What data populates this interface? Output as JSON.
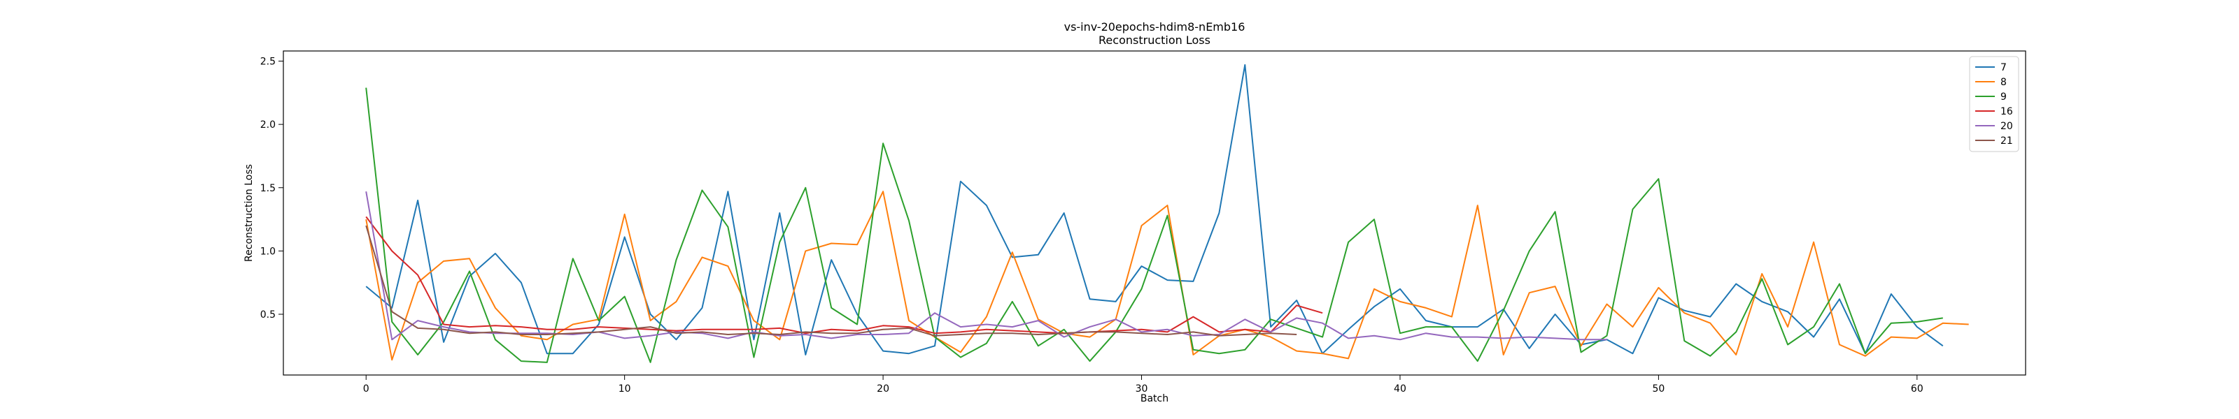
{
  "chart_data": {
    "type": "line",
    "title": "vs-inv-20epochs-hdim8-nEmb16",
    "subtitle": "Reconstruction Loss",
    "xlabel": "Batch",
    "ylabel": "Reconstruction Loss",
    "xlim": [
      -3.2,
      64.2
    ],
    "ylim": [
      0.02,
      2.58
    ],
    "xticks": [
      0,
      10,
      20,
      30,
      40,
      50,
      60
    ],
    "yticks": [
      0.5,
      1.0,
      1.5,
      2.0,
      2.5
    ],
    "grid": false,
    "legend_position": "top-right",
    "series": [
      {
        "name": "7",
        "color": "#1f77b4",
        "values": [
          0.72,
          0.55,
          1.4,
          0.28,
          0.8,
          0.98,
          0.75,
          0.19,
          0.19,
          0.42,
          1.11,
          0.5,
          0.3,
          0.55,
          1.47,
          0.3,
          1.3,
          0.18,
          0.93,
          0.5,
          0.21,
          0.19,
          0.25,
          1.55,
          1.36,
          0.95,
          0.97,
          1.3,
          0.62,
          0.6,
          0.88,
          0.77,
          0.76,
          1.3,
          2.47,
          0.4,
          0.61,
          0.19,
          0.38,
          0.56,
          0.7,
          0.45,
          0.4,
          0.4,
          0.54,
          0.23,
          0.5,
          0.26,
          0.3,
          0.19,
          0.63,
          0.53,
          0.48,
          0.74,
          0.6,
          0.52,
          0.32,
          0.62,
          0.19,
          0.66,
          0.4,
          0.25
        ]
      },
      {
        "name": "8",
        "color": "#ff7f0e",
        "values": [
          1.25,
          0.14,
          0.75,
          0.92,
          0.94,
          0.55,
          0.33,
          0.3,
          0.42,
          0.46,
          1.29,
          0.45,
          0.6,
          0.95,
          0.88,
          0.45,
          0.3,
          1.0,
          1.06,
          1.05,
          1.47,
          0.45,
          0.32,
          0.2,
          0.48,
          0.99,
          0.46,
          0.35,
          0.32,
          0.46,
          1.2,
          1.36,
          0.18,
          0.33,
          0.38,
          0.32,
          0.21,
          0.19,
          0.15,
          0.7,
          0.6,
          0.55,
          0.48,
          1.36,
          0.18,
          0.67,
          0.72,
          0.25,
          0.58,
          0.4,
          0.71,
          0.51,
          0.43,
          0.18,
          0.82,
          0.4,
          1.07,
          0.26,
          0.17,
          0.32,
          0.31,
          0.43,
          0.42
        ]
      },
      {
        "name": "9",
        "color": "#2ca02c",
        "values": [
          2.29,
          0.44,
          0.18,
          0.44,
          0.84,
          0.3,
          0.13,
          0.12,
          0.94,
          0.45,
          0.64,
          0.12,
          0.93,
          1.48,
          1.19,
          0.16,
          1.07,
          1.5,
          0.55,
          0.42,
          1.85,
          1.24,
          0.32,
          0.16,
          0.27,
          0.6,
          0.25,
          0.38,
          0.13,
          0.36,
          0.7,
          1.28,
          0.22,
          0.19,
          0.22,
          0.46,
          0.39,
          0.32,
          1.07,
          1.25,
          0.35,
          0.4,
          0.4,
          0.13,
          0.53,
          1.0,
          1.31,
          0.2,
          0.33,
          1.33,
          1.57,
          0.29,
          0.17,
          0.36,
          0.78,
          0.26,
          0.4,
          0.74,
          0.19,
          0.43,
          0.44,
          0.47
        ]
      },
      {
        "name": "16",
        "color": "#d62728",
        "values": [
          1.27,
          1.0,
          0.81,
          0.42,
          0.4,
          0.41,
          0.4,
          0.38,
          0.38,
          0.4,
          0.39,
          0.38,
          0.37,
          0.38,
          0.38,
          0.38,
          0.39,
          0.35,
          0.38,
          0.37,
          0.41,
          0.4,
          0.35,
          0.36,
          0.38,
          0.37,
          0.36,
          0.35,
          0.36,
          0.37,
          0.38,
          0.36,
          0.48,
          0.36,
          0.38,
          0.36,
          0.57,
          0.51
        ]
      },
      {
        "name": "20",
        "color": "#9467bd",
        "values": [
          1.47,
          0.3,
          0.45,
          0.4,
          0.36,
          0.35,
          0.35,
          0.35,
          0.34,
          0.36,
          0.31,
          0.33,
          0.36,
          0.35,
          0.31,
          0.36,
          0.33,
          0.34,
          0.31,
          0.34,
          0.34,
          0.35,
          0.51,
          0.4,
          0.42,
          0.4,
          0.45,
          0.32,
          0.4,
          0.46,
          0.36,
          0.38,
          0.33,
          0.34,
          0.46,
          0.36,
          0.47,
          0.43,
          0.31,
          0.33,
          0.3,
          0.35,
          0.32,
          0.32,
          0.31,
          0.32,
          0.31,
          0.3,
          0.3
        ]
      },
      {
        "name": "21",
        "color": "#8c564b",
        "values": [
          1.2,
          0.52,
          0.39,
          0.38,
          0.35,
          0.36,
          0.34,
          0.34,
          0.35,
          0.36,
          0.38,
          0.4,
          0.35,
          0.36,
          0.34,
          0.35,
          0.34,
          0.36,
          0.35,
          0.35,
          0.38,
          0.39,
          0.33,
          0.34,
          0.35,
          0.35,
          0.34,
          0.35,
          0.36,
          0.36,
          0.35,
          0.34,
          0.36,
          0.33,
          0.34,
          0.35,
          0.34
        ]
      }
    ]
  }
}
